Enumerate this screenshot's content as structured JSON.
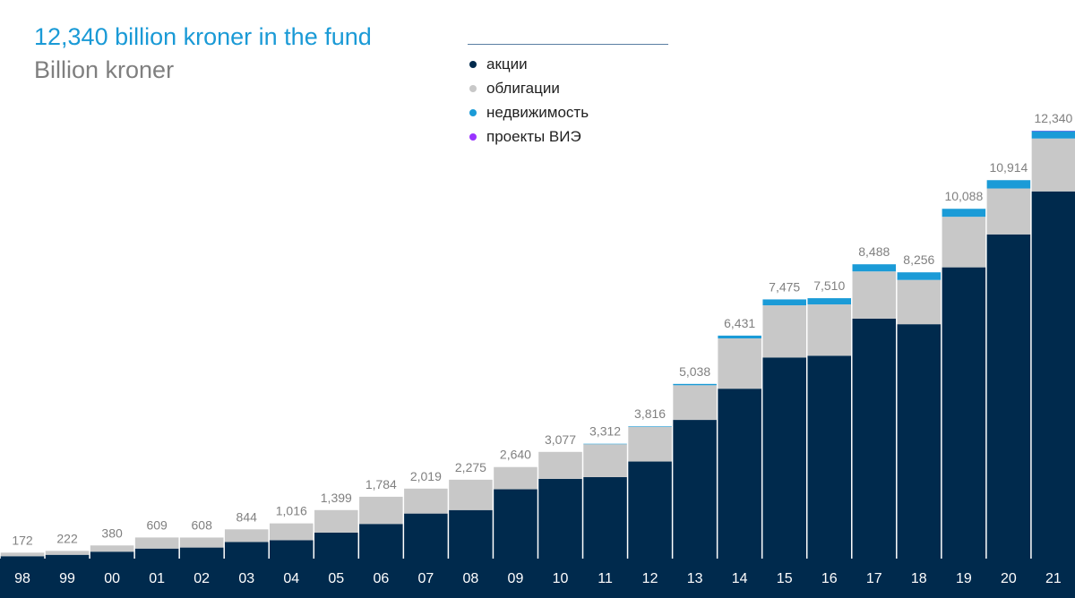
{
  "chart_data": {
    "type": "bar",
    "stacked": true,
    "title": "12,340 billion kroner in the fund",
    "subtitle": "Billion kroner",
    "categories": [
      "98",
      "99",
      "00",
      "01",
      "02",
      "03",
      "04",
      "05",
      "06",
      "07",
      "08",
      "09",
      "10",
      "11",
      "12",
      "13",
      "14",
      "15",
      "16",
      "17",
      "18",
      "19",
      "20",
      "21"
    ],
    "totals_labels": [
      "172",
      "222",
      "380",
      "609",
      "608",
      "844",
      "1,016",
      "1,399",
      "1,784",
      "2,019",
      "2,275",
      "2,640",
      "3,077",
      "3,312",
      "3,816",
      "5,038",
      "6,431",
      "7,475",
      "7,510",
      "8,488",
      "8,256",
      "10,088",
      "10,914",
      "12,340"
    ],
    "totals": [
      172,
      222,
      380,
      609,
      608,
      844,
      1016,
      1399,
      1784,
      2019,
      2275,
      2640,
      3077,
      3312,
      3816,
      5038,
      6431,
      7475,
      7510,
      8488,
      8256,
      10088,
      10914,
      12340
    ],
    "series": [
      {
        "name": "акции",
        "color": "#002a4d",
        "values": [
          70,
          110,
          200,
          290,
          320,
          480,
          530,
          750,
          1000,
          1300,
          1400,
          2000,
          2300,
          2350,
          2800,
          4000,
          4900,
          5800,
          5850,
          6920,
          6760,
          8400,
          9350,
          10590
        ]
      },
      {
        "name": "облигации",
        "color": "#c8c8c8",
        "values": [
          102,
          112,
          180,
          319,
          288,
          364,
          486,
          649,
          784,
          719,
          875,
          640,
          777,
          948,
          1000,
          1000,
          1451,
          1505,
          1480,
          1362,
          1276,
          1458,
          1324,
          1525
        ]
      },
      {
        "name": "недвижимость",
        "color": "#1b9bd7",
        "values": [
          0,
          0,
          0,
          0,
          0,
          0,
          0,
          0,
          0,
          0,
          0,
          0,
          0,
          14,
          16,
          38,
          80,
          170,
          180,
          206,
          220,
          230,
          240,
          215
        ]
      },
      {
        "name": "проекты ВИЭ",
        "color": "#9933ff",
        "values": [
          0,
          0,
          0,
          0,
          0,
          0,
          0,
          0,
          0,
          0,
          0,
          0,
          0,
          0,
          0,
          0,
          0,
          0,
          0,
          0,
          0,
          0,
          0,
          10
        ]
      }
    ],
    "ylim": [
      0,
      12340
    ],
    "grid": false,
    "legend_position": "top-center",
    "axis_band_color": "#002a4d"
  }
}
